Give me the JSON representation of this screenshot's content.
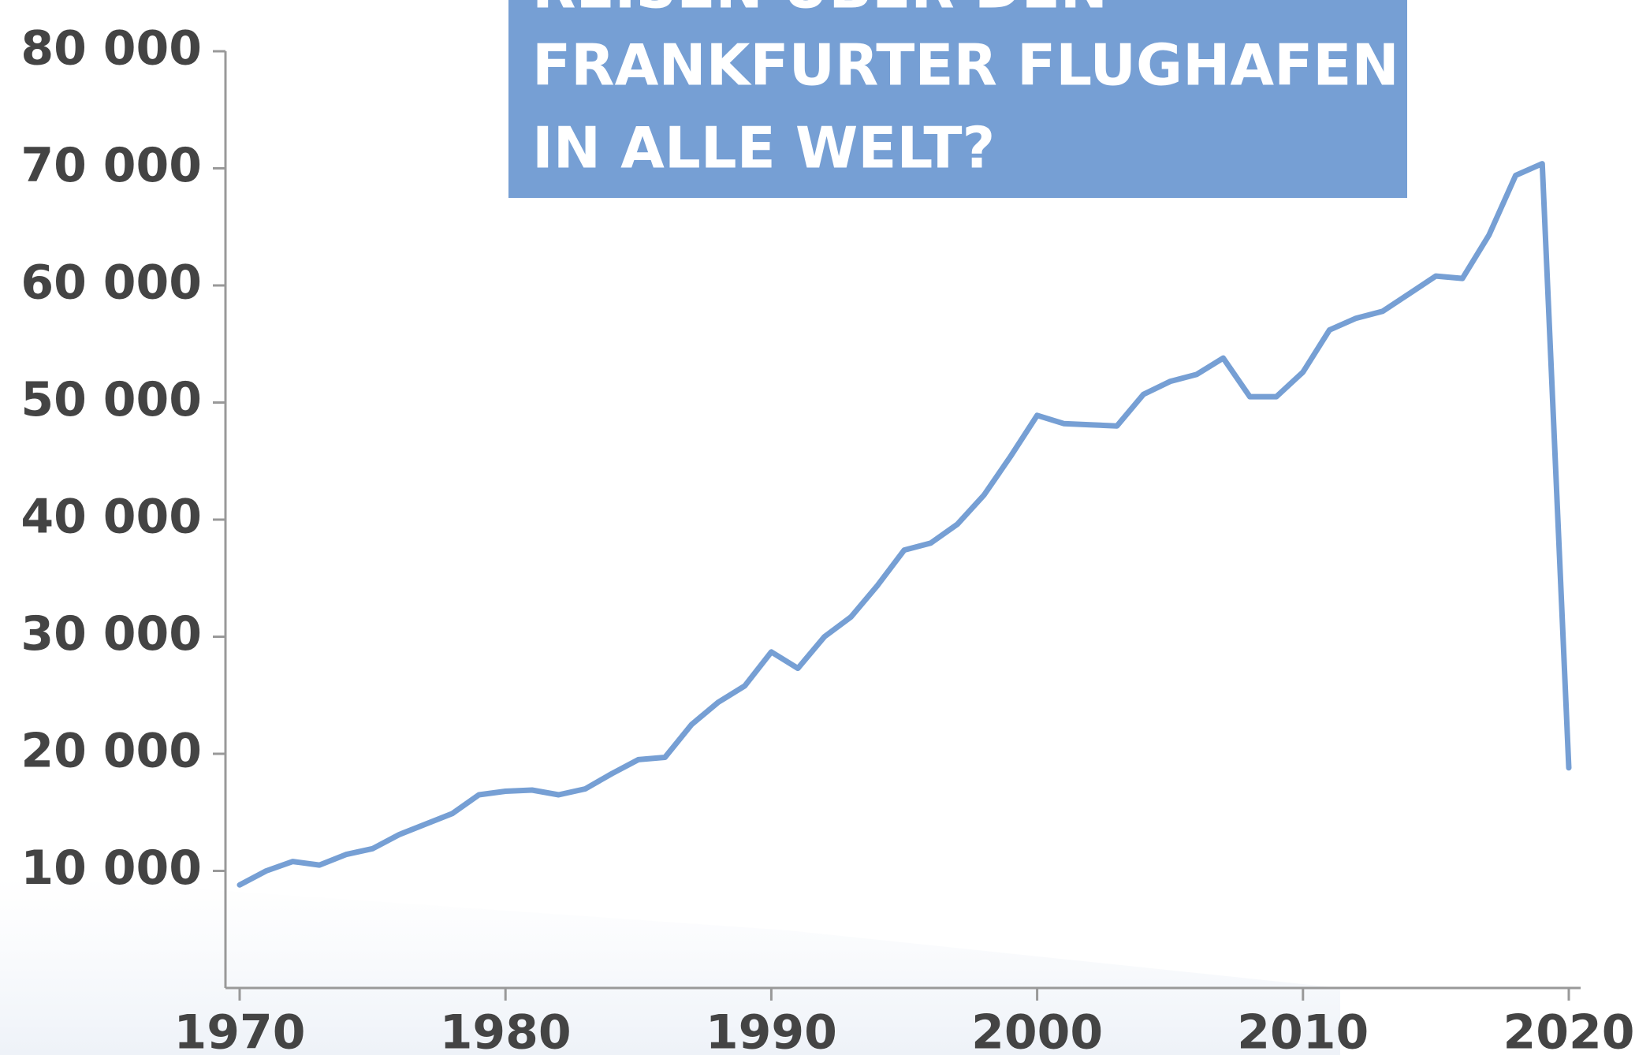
{
  "chart_data": {
    "type": "line",
    "title": [
      "REISEN ÜBER DEN",
      "FRANKFURTER FLUGHAFEN",
      "IN ALLE WELT?"
    ],
    "x": [
      1970,
      1971,
      1972,
      1973,
      1974,
      1975,
      1976,
      1977,
      1978,
      1979,
      1980,
      1981,
      1982,
      1983,
      1984,
      1985,
      1986,
      1987,
      1988,
      1989,
      1990,
      1991,
      1992,
      1993,
      1994,
      1995,
      1996,
      1997,
      1998,
      1999,
      2000,
      2001,
      2002,
      2003,
      2004,
      2005,
      2006,
      2007,
      2008,
      2009,
      2010,
      2011,
      2012,
      2013,
      2014,
      2015,
      2016,
      2017,
      2018,
      2019,
      2020
    ],
    "values": [
      8800,
      10000,
      10800,
      10500,
      11400,
      11900,
      13100,
      14000,
      14900,
      16500,
      16800,
      16900,
      16500,
      17000,
      18300,
      19500,
      19700,
      22500,
      24400,
      25800,
      28700,
      27300,
      30000,
      31700,
      34400,
      37400,
      38000,
      39600,
      42100,
      45400,
      48900,
      48200,
      48100,
      48000,
      50700,
      51800,
      52400,
      53800,
      50500,
      50500,
      52600,
      56200,
      57200,
      57800,
      59300,
      60800,
      60600,
      64300,
      69400,
      70400,
      18800
    ],
    "color": "#769fd4",
    "xlim": [
      1970,
      2020
    ],
    "xticks": [
      1970,
      1980,
      1990,
      2000,
      2010,
      2020
    ],
    "ylim": [
      0,
      80000
    ],
    "yticks": [
      {
        "value": 10000,
        "label": "10 000"
      },
      {
        "value": 20000,
        "label": "20 000"
      },
      {
        "value": 30000,
        "label": "30 000"
      },
      {
        "value": 40000,
        "label": "40 000"
      },
      {
        "value": 50000,
        "label": "50 000"
      },
      {
        "value": 60000,
        "label": "60 000"
      },
      {
        "value": 70000,
        "label": "70 000"
      },
      {
        "value": 80000,
        "label": "80 000"
      }
    ],
    "grid": false
  }
}
